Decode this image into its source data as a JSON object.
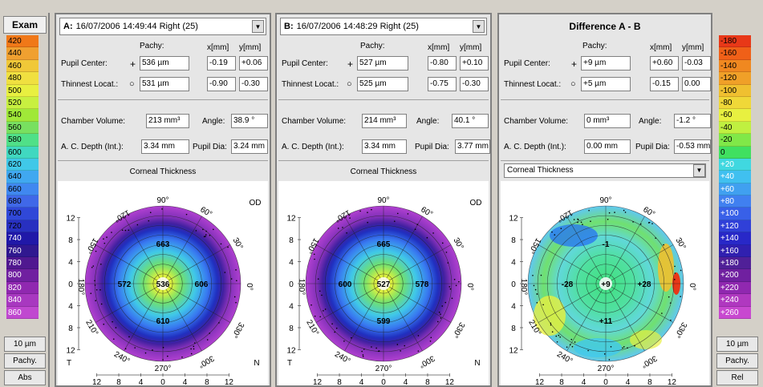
{
  "exam_scale": {
    "title": "Exam",
    "values": [
      "420",
      "440",
      "460",
      "480",
      "500",
      "520",
      "540",
      "560",
      "580",
      "600",
      "620",
      "640",
      "660",
      "680",
      "700",
      "720",
      "740",
      "760",
      "780",
      "800",
      "820",
      "840",
      "860"
    ],
    "colors": [
      "#f07818",
      "#f0a030",
      "#f0c838",
      "#f0e040",
      "#e8f040",
      "#c8f040",
      "#a0e838",
      "#78e060",
      "#50e088",
      "#40d8c0",
      "#40c8e8",
      "#40a8f0",
      "#4088f0",
      "#4068e8",
      "#3048d8",
      "#2830c0",
      "#2018a8",
      "#301890",
      "#501890",
      "#7020a0",
      "#9028b0",
      "#a838c0",
      "#c048d0"
    ],
    "step_label": "10 µm",
    "btn_pachy": "Pachy.",
    "btn_mode": "Abs"
  },
  "diff_scale": {
    "values": [
      "-180",
      "-160",
      "-140",
      "-120",
      "-100",
      "-80",
      "-60",
      "-40",
      "-20",
      "0",
      "+20",
      "+40",
      "+60",
      "+80",
      "+100",
      "+120",
      "+140",
      "+160",
      "+180",
      "+200",
      "+220",
      "+240",
      "+260"
    ],
    "colors": [
      "#e83818",
      "#f06018",
      "#f08820",
      "#f0a028",
      "#f0c030",
      "#f0d838",
      "#e8f040",
      "#c0f040",
      "#80e848",
      "#40e060",
      "#40d8e0",
      "#40c0f0",
      "#40a0f0",
      "#4080f0",
      "#3860e8",
      "#3040d8",
      "#2828c8",
      "#3020b0",
      "#502098",
      "#7020a0",
      "#9028b0",
      "#b038c0",
      "#c848d0"
    ],
    "step_label": "10 µm",
    "btn_pachy": "Pachy.",
    "btn_mode": "Rel"
  },
  "labels": {
    "pachy": "Pachy:",
    "x": "x[mm]",
    "y": "y[mm]",
    "pupil_center": "Pupil Center:",
    "thinnest": "Thinnest Locat.:",
    "chamber_volume": "Chamber Volume:",
    "angle": "Angle:",
    "ac_depth": "A. C. Depth (Int.):",
    "pupil_dia": "Pupil Dia:",
    "corneal_thickness": "Corneal Thickness",
    "diff_title": "Difference A - B"
  },
  "panel_a": {
    "letter": "A:",
    "exam": "16/07/2006 14:49:44 Right (25)",
    "pupil_pachy": "536 µm",
    "pupil_x": "-0.19",
    "pupil_y": "+0.06",
    "thin_pachy": "531 µm",
    "thin_x": "-0.90",
    "thin_y": "-0.30",
    "chamber_volume": "213 mm³",
    "angle": "38.9 °",
    "ac_depth": "3.34 mm",
    "pupil_dia": "3.24 mm",
    "map": {
      "top": "663",
      "left": "572",
      "center": "536",
      "right": "606",
      "bottom": "610",
      "eye": "OD",
      "temporal": "T",
      "nasal": "N"
    }
  },
  "panel_b": {
    "letter": "B:",
    "exam": "16/07/2006 14:48:29 Right (25)",
    "pupil_pachy": "527 µm",
    "pupil_x": "-0.80",
    "pupil_y": "+0.10",
    "thin_pachy": "525 µm",
    "thin_x": "-0.75",
    "thin_y": "-0.30",
    "chamber_volume": "214 mm³",
    "angle": "40.1 °",
    "ac_depth": "3.34 mm",
    "pupil_dia": "3.77 mm",
    "map": {
      "top": "665",
      "left": "600",
      "center": "527",
      "right": "578",
      "bottom": "599",
      "eye": "OD",
      "temporal": "T",
      "nasal": "N"
    }
  },
  "panel_d": {
    "pupil_pachy": "+9 µm",
    "pupil_x": "+0.60",
    "pupil_y": "-0.03",
    "thin_pachy": "+5 µm",
    "thin_x": "-0.15",
    "thin_y": "0.00",
    "chamber_volume": "0 mm³",
    "angle": "-1.2 °",
    "ac_depth": "0.00 mm",
    "pupil_dia": "-0.53 mm",
    "select_value": "Corneal Thickness",
    "map": {
      "top": "-1",
      "left": "-28",
      "center": "+9",
      "right": "+28",
      "bottom": "+11"
    }
  },
  "map_axes": {
    "angles": [
      "90°",
      "60°",
      "30°",
      "0°",
      "330°",
      "300°",
      "270°",
      "240°",
      "210°",
      "180°",
      "150°",
      "120°"
    ],
    "y_ticks": [
      "12",
      "8",
      "4",
      "0",
      "4",
      "8",
      "12"
    ],
    "x_ticks": [
      "12",
      "8",
      "4",
      "0",
      "4",
      "8",
      "12"
    ]
  }
}
